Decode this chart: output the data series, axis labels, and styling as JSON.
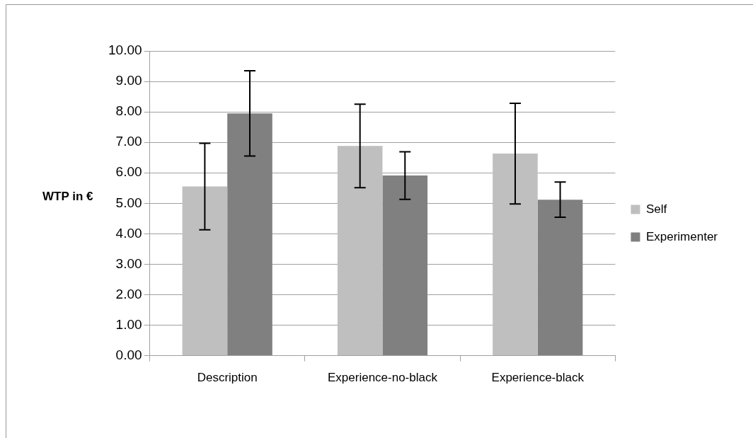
{
  "chart_data": {
    "type": "bar",
    "ylabel": "WTP in €",
    "categories": [
      "Description",
      "Experience-no-black",
      "Experience-black"
    ],
    "series": [
      {
        "name": "Self",
        "color": "#bfbfbf",
        "values": [
          5.55,
          6.88,
          6.63
        ],
        "errors": [
          1.42,
          1.37,
          1.65
        ]
      },
      {
        "name": "Experimenter",
        "color": "#808080",
        "values": [
          7.95,
          5.91,
          5.12
        ],
        "errors": [
          1.4,
          0.78,
          0.58
        ]
      }
    ],
    "ylim": [
      0,
      10
    ],
    "yticks": [
      {
        "value": 0,
        "label": "0.00"
      },
      {
        "value": 1,
        "label": "1.00"
      },
      {
        "value": 2,
        "label": "2.00"
      },
      {
        "value": 3,
        "label": "3.00"
      },
      {
        "value": 4,
        "label": "4.00"
      },
      {
        "value": 5,
        "label": "5.00"
      },
      {
        "value": 6,
        "label": "6.00"
      },
      {
        "value": 7,
        "label": "7.00"
      },
      {
        "value": 8,
        "label": "8.00"
      },
      {
        "value": 9,
        "label": "9.00"
      },
      {
        "value": 10,
        "label": "10.00"
      }
    ],
    "grid": "y",
    "legend": "right"
  }
}
